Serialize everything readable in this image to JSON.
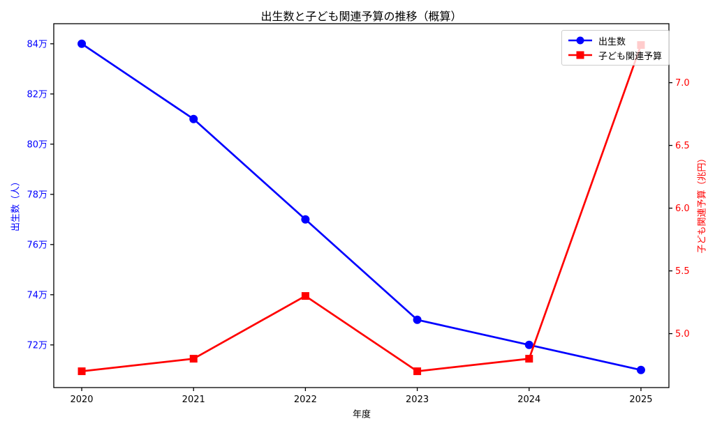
{
  "chart_data": {
    "type": "line",
    "title": "出生数と子ども関連予算の推移（概算）",
    "xlabel": "年度",
    "categories": [
      "2020",
      "2021",
      "2022",
      "2023",
      "2024",
      "2025"
    ],
    "left_axis": {
      "label": "出生数（人）",
      "color": "#0000ff",
      "lim": [
        703000,
        848000
      ],
      "ticks": [
        {
          "value": 840000,
          "label": "84万"
        },
        {
          "value": 820000,
          "label": "82万"
        },
        {
          "value": 800000,
          "label": "80万"
        },
        {
          "value": 780000,
          "label": "78万"
        },
        {
          "value": 760000,
          "label": "76万"
        },
        {
          "value": 740000,
          "label": "74万"
        },
        {
          "value": 720000,
          "label": "72万"
        }
      ]
    },
    "right_axis": {
      "label": "子ども関連予算（兆円）",
      "color": "#ff0000",
      "lim": [
        4.57,
        7.47
      ],
      "ticks": [
        {
          "value": 7.0,
          "label": "7.0"
        },
        {
          "value": 6.5,
          "label": "6.5"
        },
        {
          "value": 6.0,
          "label": "6.0"
        },
        {
          "value": 5.5,
          "label": "5.5"
        },
        {
          "value": 5.0,
          "label": "5.0"
        }
      ]
    },
    "series": [
      {
        "name": "出生数",
        "axis": "left",
        "color": "#0000ff",
        "marker": "circle",
        "values": [
          840000,
          810000,
          770000,
          730000,
          720000,
          710000
        ]
      },
      {
        "name": "子ども関連予算",
        "axis": "right",
        "color": "#ff0000",
        "marker": "square",
        "values": [
          4.7,
          4.8,
          5.3,
          4.7,
          4.8,
          7.3
        ]
      }
    ],
    "legend": {
      "position": "top-right"
    },
    "grid": false,
    "axis_color": "#000000"
  }
}
